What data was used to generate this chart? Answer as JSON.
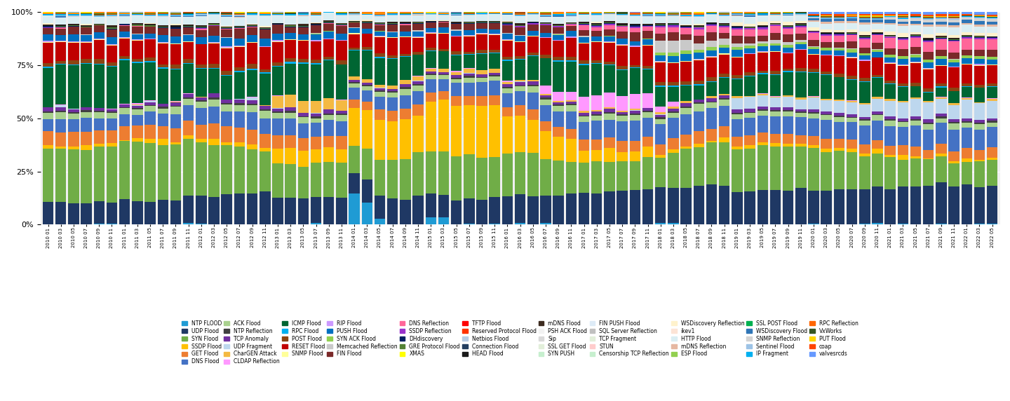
{
  "categories": [
    "2010 01",
    "2010 03",
    "2010 05",
    "2010 07",
    "2010 09",
    "2010 11",
    "2011 01",
    "2011 03",
    "2011 05",
    "2011 07",
    "2011 09",
    "2011 11",
    "2012 01",
    "2012 03",
    "2012 05",
    "2012 07",
    "2012 09",
    "2012 11",
    "2013 01",
    "2013 03",
    "2013 05",
    "2013 07",
    "2013 09",
    "2013 11",
    "2014 01",
    "2014 03",
    "2014 05",
    "2014 07",
    "2014 09",
    "2014 11",
    "2015 01",
    "2015 03",
    "2015 05",
    "2015 07",
    "2015 09",
    "2015 11",
    "2016 01",
    "2016 03",
    "2016 05",
    "2016 07",
    "2016 09",
    "2016 11",
    "2017 01",
    "2017 03",
    "2017 05",
    "2017 07",
    "2017 09",
    "2017 11",
    "2018 01",
    "2018 03",
    "2018 05",
    "2018 07",
    "2018 09",
    "2018 11",
    "2019 01",
    "2019 03",
    "2019 05",
    "2019 07",
    "2019 09",
    "2019 11",
    "2020 01",
    "2020 03",
    "2020 05",
    "2020 07",
    "2020 09",
    "2020 11",
    "2021 01",
    "2021 03",
    "2021 05",
    "2021 07",
    "2021 09",
    "2021 11",
    "2022 01",
    "2022 03",
    "2022 05"
  ],
  "series_order": [
    "NTP FLOOD",
    "UDP Flood",
    "SYN Flood",
    "SSDP Flood",
    "GET Flood",
    "DNS Flood",
    "ACK Flood",
    "NTP Reflection",
    "TCP Anomaly",
    "UDP Fragment",
    "CharGEN Attack",
    "CLDAP Reflection",
    "ICMP Flood",
    "RPC Flood",
    "POST Flood",
    "RESET Flood",
    "SNMP Flood",
    "RIP Flood",
    "PUSH Flood",
    "SYN ACK Flood",
    "Memcached Reflection",
    "FIN Flood",
    "DNS Reflection",
    "SSDP Reflection",
    "DHdiscovery",
    "GRE Protocol Flood",
    "XMAS",
    "TFTP Flood",
    "Reserved Protocol Flood",
    "Netbios Flood",
    "Connection Flood",
    "HEAD Flood",
    "mDNS Flood",
    "PSH ACK Flood",
    "Sip",
    "SSL GET Flood",
    "SYN PUSH",
    "FIN PUSH Flood",
    "SQL Server Reflection",
    "TCP Fragment",
    "STUN",
    "Censorship TCP Reflection",
    "WSDiscovery Reflection",
    "ikev1",
    "HTTP Flood",
    "mDNS Reflection",
    "ESP Flood",
    "SSL POST Flood",
    "WSDiscovery Flood",
    "SNMP Reflection",
    "Sentinel Flood",
    "IP Fragment",
    "RPC Reflection",
    "VxWorks",
    "PUT Flood",
    "coap",
    "valvesrcds"
  ],
  "colors": {
    "NTP FLOOD": "#1F9BD4",
    "UDP Flood": "#1F3864",
    "SYN Flood": "#70AD47",
    "SSDP Flood": "#FFC000",
    "GET Flood": "#ED7D31",
    "DNS Flood": "#4472C4",
    "ACK Flood": "#A9D18E",
    "NTP Reflection": "#404040",
    "TCP Anomaly": "#7030A0",
    "UDP Fragment": "#BDD7EE",
    "CharGEN Attack": "#F4B942",
    "CLDAP Reflection": "#FF99FF",
    "ICMP Flood": "#006633",
    "RPC Flood": "#00B0F0",
    "POST Flood": "#8B4513",
    "RESET Flood": "#C00000",
    "SNMP Flood": "#FFFF99",
    "RIP Flood": "#CC99FF",
    "PUSH Flood": "#0070C0",
    "SYN ACK Flood": "#92D050",
    "Memcached Reflection": "#C9C9C9",
    "FIN Flood": "#7B2929",
    "DNS Reflection": "#FF6699",
    "SSDP Reflection": "#9933CC",
    "DHdiscovery": "#002060",
    "GRE Protocol Flood": "#548235",
    "XMAS": "#FFFF00",
    "TFTP Flood": "#FF0000",
    "Reserved Protocol Flood": "#FF3300",
    "Netbios Flood": "#B8CCE4",
    "Connection Flood": "#243F60",
    "HEAD Flood": "#1A1A1A",
    "mDNS Flood": "#3D2B1F",
    "PSH ACK Flood": "#F2F2F2",
    "Sip": "#D9D9D9",
    "SSL GET Flood": "#E2EFDA",
    "SYN PUSH": "#C6EFCE",
    "FIN PUSH Flood": "#DDEBF7",
    "SQL Server Reflection": "#C0C0C0",
    "TCP Fragment": "#E2EFDA",
    "STUN": "#FFCCCC",
    "Censorship TCP Reflection": "#C6EFCE",
    "WSDiscovery Reflection": "#FFF2CC",
    "ikev1": "#FCE4D6",
    "HTTP Flood": "#DAEEF3",
    "mDNS Reflection": "#E6B8A2",
    "ESP Flood": "#92D050",
    "SSL POST Flood": "#00B050",
    "WSDiscovery Flood": "#2F75B6",
    "SNMP Reflection": "#D3D3D3",
    "Sentinel Flood": "#9DC3E6",
    "IP Fragment": "#00B0F0",
    "RPC Reflection": "#FF6600",
    "VxWorks": "#375623",
    "PUT Flood": "#FFD700",
    "coap": "#FF4500",
    "valvesrcds": "#6699FF"
  },
  "legend_order": [
    "NTP FLOOD",
    "UDP Flood",
    "SYN Flood",
    "SSDP Flood",
    "GET Flood",
    "DNS Flood",
    "ACK Flood",
    "NTP Reflection",
    "TCP Anomaly",
    "UDP Fragment",
    "CharGEN Attack",
    "CLDAP Reflection",
    "ICMP Flood",
    "RPC Flood",
    "POST Flood",
    "RESET Flood",
    "SNMP Flood",
    "RIP Flood",
    "PUSH Flood",
    "SYN ACK Flood",
    "Memcached Reflection",
    "FIN Flood",
    "DNS Reflection",
    "SSDP Reflection",
    "DHdiscovery",
    "GRE Protocol Flood",
    "XMAS",
    "TFTP Flood",
    "Reserved Protocol Flood",
    "Netbios Flood",
    "Connection Flood",
    "HEAD Flood",
    "mDNS Flood",
    "PSH ACK Flood",
    "Sip",
    "SSL GET Flood",
    "SYN PUSH",
    "FIN PUSH Flood",
    "SQL Server Reflection",
    "TCP Fragment",
    "STUN",
    "Censorship TCP Reflection",
    "WSDiscovery Reflection",
    "ikev1",
    "HTTP Flood",
    "mDNS Reflection",
    "ESP Flood",
    "SSL POST Flood",
    "WSDiscovery Flood",
    "SNMP Reflection",
    "Sentinel Flood",
    "IP Fragment",
    "RPC Reflection",
    "VxWorks",
    "PUT Flood",
    "coap",
    "valvesrcds"
  ]
}
